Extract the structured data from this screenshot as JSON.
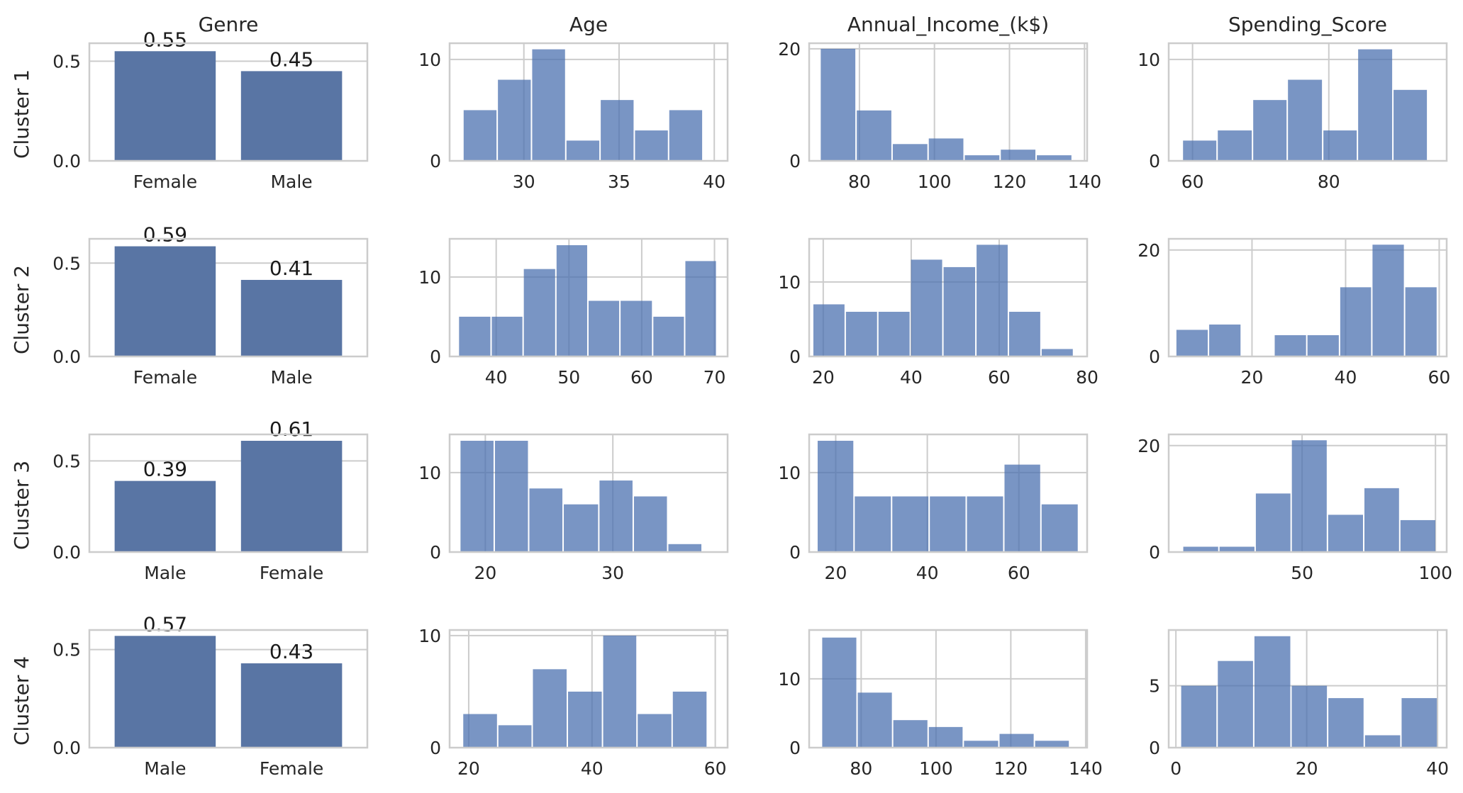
{
  "chart_data": {
    "type": "bar",
    "column_titles": [
      "Genre",
      "Age",
      "Annual_Income_(k$)",
      "Spending_Score"
    ],
    "row_labels": [
      "Cluster 1",
      "Cluster 2",
      "Cluster 3",
      "Cluster 4"
    ],
    "grid": true,
    "panels": [
      [
        {
          "type": "bar",
          "categories": [
            "Female",
            "Male"
          ],
          "values": [
            0.55,
            0.45
          ],
          "data_labels": [
            "0.55",
            "0.45"
          ],
          "xlim": [
            -0.6,
            1.6
          ],
          "ylim": [
            0,
            0.59
          ],
          "xticks": [],
          "yticks": [
            0,
            0.5
          ],
          "ytick_labels": [
            "0.0",
            "0.5"
          ],
          "x_grid": false
        },
        {
          "type": "histogram",
          "bins": [
            [
              26.8,
              28.6,
              5
            ],
            [
              28.6,
              30.4,
              8
            ],
            [
              30.4,
              32.2,
              11
            ],
            [
              32.2,
              34.0,
              2
            ],
            [
              34.0,
              35.8,
              6
            ],
            [
              35.8,
              37.6,
              3
            ],
            [
              37.6,
              39.4,
              5
            ]
          ],
          "xlim": [
            26.1,
            40.7
          ],
          "ylim": [
            0,
            11.6
          ],
          "xticks": [
            30,
            35,
            40
          ],
          "yticks": [
            0,
            10
          ]
        },
        {
          "type": "histogram",
          "bins": [
            [
              69.5,
              79.1,
              20
            ],
            [
              79.1,
              88.7,
              9
            ],
            [
              88.7,
              98.3,
              3
            ],
            [
              98.3,
              107.9,
              4
            ],
            [
              107.9,
              117.5,
              1
            ],
            [
              117.5,
              127.1,
              2
            ],
            [
              127.1,
              136.7,
              1
            ]
          ],
          "xlim": [
            66.6,
            140.7
          ],
          "ylim": [
            0,
            21
          ],
          "xticks": [
            80,
            100,
            120,
            140
          ],
          "yticks": [
            0,
            20
          ]
        },
        {
          "type": "histogram",
          "bins": [
            [
              58.5,
              63.6,
              2
            ],
            [
              63.6,
              68.8,
              3
            ],
            [
              68.8,
              73.9,
              6
            ],
            [
              73.9,
              79.1,
              8
            ],
            [
              79.1,
              84.2,
              3
            ],
            [
              84.2,
              89.4,
              11
            ],
            [
              89.4,
              94.5,
              7
            ]
          ],
          "xlim": [
            56.5,
            97.3
          ],
          "ylim": [
            0,
            11.6
          ],
          "xticks": [
            60,
            80
          ],
          "yticks": [
            0,
            10
          ]
        }
      ],
      [
        {
          "type": "bar",
          "categories": [
            "Female",
            "Male"
          ],
          "values": [
            0.59,
            0.41
          ],
          "data_labels": [
            "0.59",
            "0.41"
          ],
          "xlim": [
            -0.6,
            1.6
          ],
          "ylim": [
            0,
            0.63
          ],
          "xticks": [],
          "yticks": [
            0,
            0.5
          ],
          "ytick_labels": [
            "0.0",
            "0.5"
          ],
          "x_grid": false
        },
        {
          "type": "histogram",
          "bins": [
            [
              34.8,
              39.3,
              5
            ],
            [
              39.3,
              43.7,
              5
            ],
            [
              43.7,
              48.2,
              11
            ],
            [
              48.2,
              52.6,
              14
            ],
            [
              52.6,
              57.0,
              7
            ],
            [
              57.0,
              61.5,
              7
            ],
            [
              61.5,
              65.9,
              5
            ],
            [
              65.9,
              70.3,
              12
            ]
          ],
          "xlim": [
            33.6,
            71.8
          ],
          "ylim": [
            0,
            14.8
          ],
          "xticks": [
            40,
            50,
            60,
            70
          ],
          "yticks": [
            0,
            10
          ]
        },
        {
          "type": "histogram",
          "bins": [
            [
              17.6,
              25.0,
              7
            ],
            [
              25.0,
              32.4,
              6
            ],
            [
              32.4,
              39.8,
              6
            ],
            [
              39.8,
              47.2,
              13
            ],
            [
              47.2,
              54.7,
              12
            ],
            [
              54.7,
              62.1,
              15
            ],
            [
              62.1,
              69.5,
              6
            ],
            [
              69.5,
              76.9,
              1
            ]
          ],
          "xlim": [
            16.8,
            80.0
          ],
          "ylim": [
            0,
            15.8
          ],
          "xticks": [
            20,
            40,
            60,
            80
          ],
          "yticks": [
            0,
            10
          ]
        },
        {
          "type": "histogram",
          "bins": [
            [
              3.7,
              10.7,
              5
            ],
            [
              10.7,
              17.7,
              6
            ],
            [
              17.7,
              24.7,
              0
            ],
            [
              24.7,
              31.7,
              4
            ],
            [
              31.7,
              38.7,
              4
            ],
            [
              38.7,
              45.6,
              13
            ],
            [
              45.6,
              52.6,
              21
            ],
            [
              52.6,
              59.6,
              13
            ]
          ],
          "xlim": [
            2.2,
            61.6
          ],
          "ylim": [
            0,
            22.1
          ],
          "xticks": [
            20,
            40,
            60
          ],
          "yticks": [
            0,
            20
          ]
        }
      ],
      [
        {
          "type": "bar",
          "categories": [
            "Male",
            "Female"
          ],
          "values": [
            0.39,
            0.61
          ],
          "data_labels": [
            "0.39",
            "0.61"
          ],
          "xlim": [
            -0.6,
            1.6
          ],
          "ylim": [
            0,
            0.645
          ],
          "xticks": [],
          "yticks": [
            0,
            0.5
          ],
          "ytick_labels": [
            "0.0",
            "0.5"
          ],
          "x_grid": false
        },
        {
          "type": "histogram",
          "bins": [
            [
              18.0,
              20.7,
              14
            ],
            [
              20.7,
              23.4,
              14
            ],
            [
              23.4,
              26.1,
              8
            ],
            [
              26.1,
              28.9,
              6
            ],
            [
              28.9,
              31.6,
              9
            ],
            [
              31.6,
              34.3,
              7
            ],
            [
              34.3,
              37.0,
              1
            ]
          ],
          "xlim": [
            17.2,
            39.0
          ],
          "ylim": [
            0,
            14.8
          ],
          "xticks": [
            20,
            30
          ],
          "yticks": [
            0,
            10
          ]
        },
        {
          "type": "histogram",
          "bins": [
            [
              15.9,
              24.0,
              14
            ],
            [
              24.0,
              32.2,
              7
            ],
            [
              32.2,
              40.4,
              7
            ],
            [
              40.4,
              48.5,
              7
            ],
            [
              48.5,
              56.7,
              7
            ],
            [
              56.7,
              64.8,
              11
            ],
            [
              64.8,
              73.0,
              6
            ]
          ],
          "xlim": [
            14.2,
            74.9
          ],
          "ylim": [
            0,
            14.8
          ],
          "xticks": [
            20,
            40,
            60
          ],
          "yticks": [
            0,
            10
          ]
        },
        {
          "type": "histogram",
          "bins": [
            [
              5.2,
              18.8,
              1
            ],
            [
              18.8,
              32.4,
              1
            ],
            [
              32.4,
              45.9,
              11
            ],
            [
              45.9,
              59.5,
              21
            ],
            [
              59.5,
              73.1,
              7
            ],
            [
              73.1,
              86.6,
              12
            ],
            [
              86.6,
              100.2,
              6
            ]
          ],
          "xlim": [
            0.0,
            104.2
          ],
          "ylim": [
            0,
            22.1
          ],
          "xticks": [
            50,
            100
          ],
          "yticks": [
            0,
            20
          ]
        }
      ],
      [
        {
          "type": "bar",
          "categories": [
            "Male",
            "Female"
          ],
          "values": [
            0.57,
            0.43
          ],
          "data_labels": [
            "0.57",
            "0.43"
          ],
          "xlim": [
            -0.6,
            1.6
          ],
          "ylim": [
            0,
            0.6
          ],
          "xticks": [],
          "yticks": [
            0,
            0.5
          ],
          "ytick_labels": [
            "0.0",
            "0.5"
          ],
          "x_grid": false
        },
        {
          "type": "histogram",
          "bins": [
            [
              19.0,
              24.7,
              3
            ],
            [
              24.7,
              30.3,
              2
            ],
            [
              30.3,
              36.0,
              7
            ],
            [
              36.0,
              41.7,
              5
            ],
            [
              41.7,
              47.3,
              10
            ],
            [
              47.3,
              53.0,
              3
            ],
            [
              53.0,
              58.7,
              5
            ]
          ],
          "xlim": [
            16.9,
            62.0
          ],
          "ylim": [
            0,
            10.5
          ],
          "xticks": [
            20,
            40,
            60
          ],
          "yticks": [
            0,
            10
          ]
        },
        {
          "type": "histogram",
          "bins": [
            [
              69.4,
              78.9,
              16
            ],
            [
              78.9,
              88.4,
              8
            ],
            [
              88.4,
              97.9,
              4
            ],
            [
              97.9,
              107.3,
              3
            ],
            [
              107.3,
              116.8,
              1
            ],
            [
              116.8,
              126.3,
              2
            ],
            [
              126.3,
              135.7,
              1
            ]
          ],
          "xlim": [
            66.1,
            140.4
          ],
          "ylim": [
            0,
            17.1
          ],
          "xticks": [
            80,
            100,
            120,
            140
          ],
          "yticks": [
            0,
            10
          ]
        },
        {
          "type": "histogram",
          "bins": [
            [
              0.7,
              6.3,
              5
            ],
            [
              6.3,
              11.9,
              7
            ],
            [
              11.9,
              17.6,
              9
            ],
            [
              17.6,
              23.2,
              5
            ],
            [
              23.2,
              28.8,
              4
            ],
            [
              28.8,
              34.4,
              1
            ],
            [
              34.4,
              40.0,
              4
            ]
          ],
          "xlim": [
            -1.1,
            41.4
          ],
          "ylim": [
            0,
            9.5
          ],
          "xticks": [
            0,
            20,
            40
          ],
          "yticks": [
            0,
            5
          ]
        }
      ]
    ]
  }
}
